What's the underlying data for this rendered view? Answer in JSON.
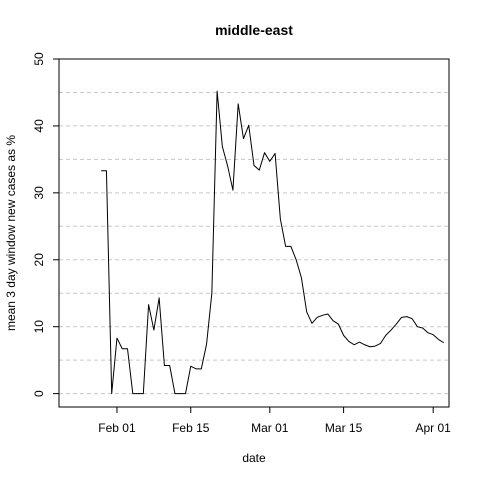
{
  "chart_data": {
    "type": "line",
    "title": "middle-east",
    "xlabel": "date",
    "ylabel": "mean  3  day window new cases as %",
    "x_start": "2020-01-29",
    "x_ticks": [
      {
        "label": "Feb 01",
        "date": "2020-02-01"
      },
      {
        "label": "Feb 15",
        "date": "2020-02-15"
      },
      {
        "label": "Mar 01",
        "date": "2020-03-01"
      },
      {
        "label": "Mar 15",
        "date": "2020-03-15"
      },
      {
        "label": "Apr 01",
        "date": "2020-04-01"
      }
    ],
    "xlim": [
      "2020-01-21",
      "2020-04-04"
    ],
    "ylim": [
      -2,
      50
    ],
    "y_ticks": [
      0,
      10,
      20,
      30,
      40,
      50
    ],
    "grid": true,
    "series": [
      {
        "values": [
          33.3,
          33.3,
          0,
          8.3,
          6.7,
          6.7,
          0,
          0,
          0,
          13.3,
          9.5,
          14.3,
          4.2,
          4.2,
          0,
          0,
          0,
          4.1,
          3.7,
          3.7,
          7.4,
          15,
          45.2,
          36.9,
          34,
          30.4,
          43.3,
          38.1,
          40.1,
          34.1,
          33.4,
          36,
          34.7,
          35.9,
          26.1,
          22,
          22,
          20,
          17.3,
          12.2,
          10.5,
          11.4,
          11.7,
          11.9,
          10.9,
          10.4,
          8.7,
          7.8,
          7.3,
          7.7,
          7.3,
          7,
          7.1,
          7.5,
          8.7,
          9.5,
          10.4,
          11.4,
          11.5,
          11.2,
          10,
          9.8,
          9.1,
          8.8,
          8.1,
          7.6
        ]
      }
    ]
  }
}
